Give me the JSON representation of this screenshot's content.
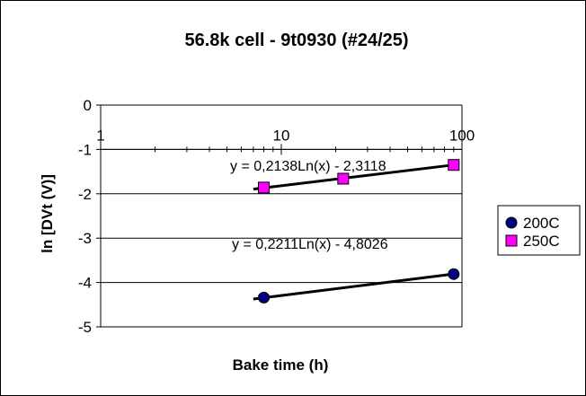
{
  "chart_data": {
    "type": "scatter",
    "title": "56.8k cell - 9t0930 (#24/25)",
    "xlabel": "Bake time (h)",
    "ylabel": "ln [DVt (V)]",
    "x_scale": "log",
    "xlim": [
      1,
      100
    ],
    "ylim": [
      -5,
      0
    ],
    "x_ticks": [
      "1",
      "10",
      "100"
    ],
    "y_ticks": [
      "0",
      "-1",
      "-2",
      "-3",
      "-4",
      "-5"
    ],
    "grid": "horizontal",
    "legend_position": "right",
    "series": [
      {
        "name": "200C",
        "marker": "circle",
        "color": "#000080",
        "points": [
          {
            "x": 8,
            "y": -4.34
          },
          {
            "x": 90,
            "y": -3.81
          }
        ],
        "trendline": {
          "a": 0.2211,
          "b": -4.8026,
          "x_range": [
            7,
            90
          ]
        },
        "equation": "y = 0,2211Ln(x) - 4,8026"
      },
      {
        "name": "250C",
        "marker": "square",
        "color": "#ff00ff",
        "points": [
          {
            "x": 8,
            "y": -1.86
          },
          {
            "x": 22,
            "y": -1.66
          },
          {
            "x": 90,
            "y": -1.35
          }
        ],
        "trendline": {
          "a": 0.2138,
          "b": -2.3118,
          "x_range": [
            7,
            90
          ]
        },
        "equation": "y = 0,2138Ln(x) - 2,3118"
      }
    ]
  }
}
